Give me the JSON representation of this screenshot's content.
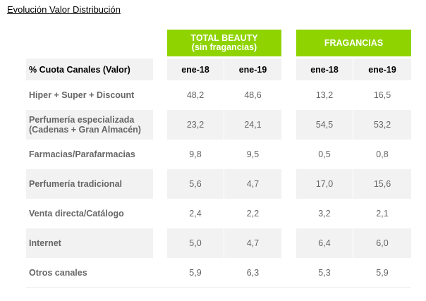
{
  "title": "Evolución Valor Distribución",
  "groups": [
    {
      "line1": "TOTAL BEAUTY",
      "line2": "(sin fragancias)"
    },
    {
      "line1": "FRAGANCIAS",
      "line2": ""
    }
  ],
  "colors": {
    "header_green": "#8fd400",
    "row_grey": "#f2f2f2"
  },
  "header": {
    "label": "% Cuota Canales (Valor)",
    "cols": [
      "ene-18",
      "ene-19",
      "ene-18",
      "ene-19"
    ]
  },
  "rows": [
    {
      "label": "Hiper + Super + Discount",
      "values": [
        "48,2",
        "48,6",
        "13,2",
        "16,5"
      ]
    },
    {
      "label": "Perfumería especializada\n(Cadenas + Gran Almacén)",
      "values": [
        "23,2",
        "24,1",
        "54,5",
        "53,2"
      ]
    },
    {
      "label": "Farmacias/Parafarmacias",
      "values": [
        "9,8",
        "9,5",
        "0,5",
        "0,8"
      ]
    },
    {
      "label": "Perfumería tradicional",
      "values": [
        "5,6",
        "4,7",
        "17,0",
        "15,6"
      ]
    },
    {
      "label": "Venta directa/Catálogo",
      "values": [
        "2,4",
        "2,2",
        "3,2",
        "2,1"
      ]
    },
    {
      "label": "Internet",
      "values": [
        "5,0",
        "4,7",
        "6,4",
        "6,0"
      ]
    },
    {
      "label": "Otros canales",
      "values": [
        "5,9",
        "6,3",
        "5,3",
        "5,9"
      ]
    }
  ]
}
